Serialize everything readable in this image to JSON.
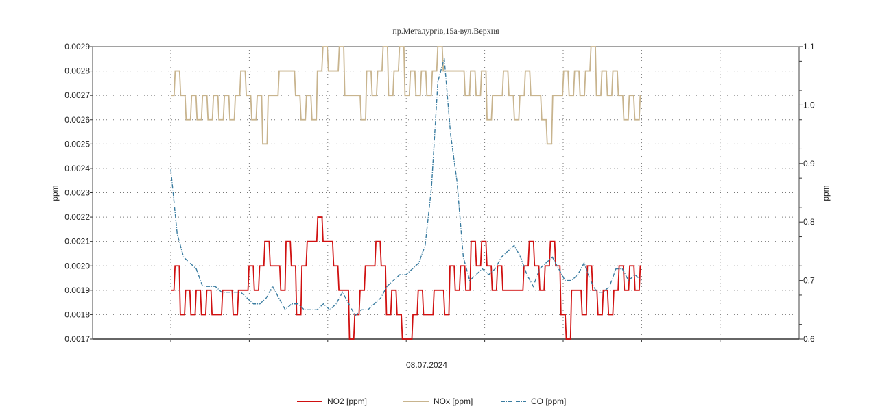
{
  "chart_data": {
    "type": "line",
    "title": "пр.Металургів,15а-вул.Верхня",
    "xlabel": "08.07.2024",
    "ylabel": "ppm",
    "y2label": "ppm",
    "ylim": [
      0.0017,
      0.0029
    ],
    "y2lim": [
      0.6,
      1.1
    ],
    "yticks": [
      "0.0017",
      "0.0018",
      "0.0019",
      "0.0020",
      "0.0021",
      "0.0022",
      "0.0023",
      "0.0024",
      "0.0025",
      "0.0026",
      "0.0027",
      "0.0028",
      "0.0029"
    ],
    "y2ticks": [
      "0.6",
      "0.7",
      "0.8",
      "0.9",
      "1.0",
      "1.1"
    ],
    "grid": true,
    "legend_position": "bottom",
    "series": [
      {
        "name": "NO2 [ppm]",
        "axis": "left",
        "color": "#d01010",
        "style": "solid",
        "values": [
          0.0019,
          0.002,
          0.0018,
          0.0019,
          0.0018,
          0.0019,
          0.0018,
          0.0019,
          0.0018,
          0.0018,
          0.0019,
          0.0019,
          0.0018,
          0.0019,
          0.0019,
          0.002,
          0.0019,
          0.002,
          0.0021,
          0.002,
          0.002,
          0.0019,
          0.0021,
          0.002,
          0.0018,
          0.002,
          0.0021,
          0.0021,
          0.0022,
          0.0021,
          0.0021,
          0.002,
          0.0019,
          0.0019,
          0.0017,
          0.0018,
          0.0019,
          0.002,
          0.002,
          0.0021,
          0.002,
          0.0018,
          0.0019,
          0.0018,
          0.0017,
          0.0017,
          0.0018,
          0.0019,
          0.0018,
          0.0018,
          0.0019,
          0.0019,
          0.0018,
          0.002,
          0.0019,
          0.002,
          0.0019,
          0.0021,
          0.002,
          0.0021,
          0.002,
          0.0019,
          0.002,
          0.0019,
          0.0019,
          0.0019,
          0.0019,
          0.002,
          0.0021,
          0.002,
          0.0019,
          0.002,
          0.0021,
          0.002,
          0.0018,
          0.0017,
          0.0019,
          0.0019,
          0.0018,
          0.002,
          0.0019,
          0.0018,
          0.0019,
          0.0018,
          0.0019,
          0.002,
          0.0019,
          0.002,
          0.0019,
          0.002
        ]
      },
      {
        "name": "NOx [ppm]",
        "axis": "left",
        "color": "#c8b48e",
        "style": "solid",
        "values": [
          0.0027,
          0.0028,
          0.0027,
          0.0026,
          0.0027,
          0.0026,
          0.0027,
          0.0026,
          0.0027,
          0.0026,
          0.0027,
          0.0026,
          0.0027,
          0.0028,
          0.0027,
          0.0026,
          0.0027,
          0.0025,
          0.0027,
          0.0027,
          0.0028,
          0.0028,
          0.0028,
          0.0027,
          0.0026,
          0.0027,
          0.0026,
          0.0028,
          0.0029,
          0.0028,
          0.0028,
          0.0029,
          0.0027,
          0.0027,
          0.0027,
          0.0026,
          0.0028,
          0.0027,
          0.0028,
          0.0029,
          0.0027,
          0.0028,
          0.0029,
          0.0027,
          0.0028,
          0.0027,
          0.0028,
          0.0027,
          0.0028,
          0.0029,
          0.0028,
          0.0028,
          0.0028,
          0.0028,
          0.0027,
          0.0028,
          0.0027,
          0.0028,
          0.0026,
          0.0027,
          0.0027,
          0.0028,
          0.0027,
          0.0026,
          0.0027,
          0.0028,
          0.0027,
          0.0027,
          0.0026,
          0.0025,
          0.0027,
          0.0027,
          0.0028,
          0.0027,
          0.0028,
          0.0027,
          0.0028,
          0.0029,
          0.0027,
          0.0028,
          0.0027,
          0.0028,
          0.0027,
          0.0026,
          0.0027,
          0.0026,
          0.0027
        ]
      },
      {
        "name": "CO [ppm]",
        "axis": "right",
        "color": "#3a7ca0",
        "style": "dashdot",
        "values": [
          0.89,
          0.78,
          0.74,
          0.73,
          0.72,
          0.69,
          0.69,
          0.69,
          0.68,
          0.68,
          0.68,
          0.68,
          0.67,
          0.66,
          0.66,
          0.67,
          0.69,
          0.67,
          0.65,
          0.66,
          0.66,
          0.65,
          0.65,
          0.65,
          0.66,
          0.65,
          0.66,
          0.68,
          0.66,
          0.64,
          0.65,
          0.65,
          0.66,
          0.67,
          0.69,
          0.7,
          0.71,
          0.71,
          0.72,
          0.73,
          0.76,
          0.86,
          1.04,
          1.08,
          0.95,
          0.87,
          0.74,
          0.7,
          0.71,
          0.72,
          0.71,
          0.72,
          0.74,
          0.75,
          0.76,
          0.74,
          0.71,
          0.69,
          0.72,
          0.73,
          0.74,
          0.72,
          0.7,
          0.7,
          0.71,
          0.73,
          0.7,
          0.68,
          0.68,
          0.69,
          0.72,
          0.72,
          0.7,
          0.71,
          0.7
        ]
      }
    ]
  }
}
